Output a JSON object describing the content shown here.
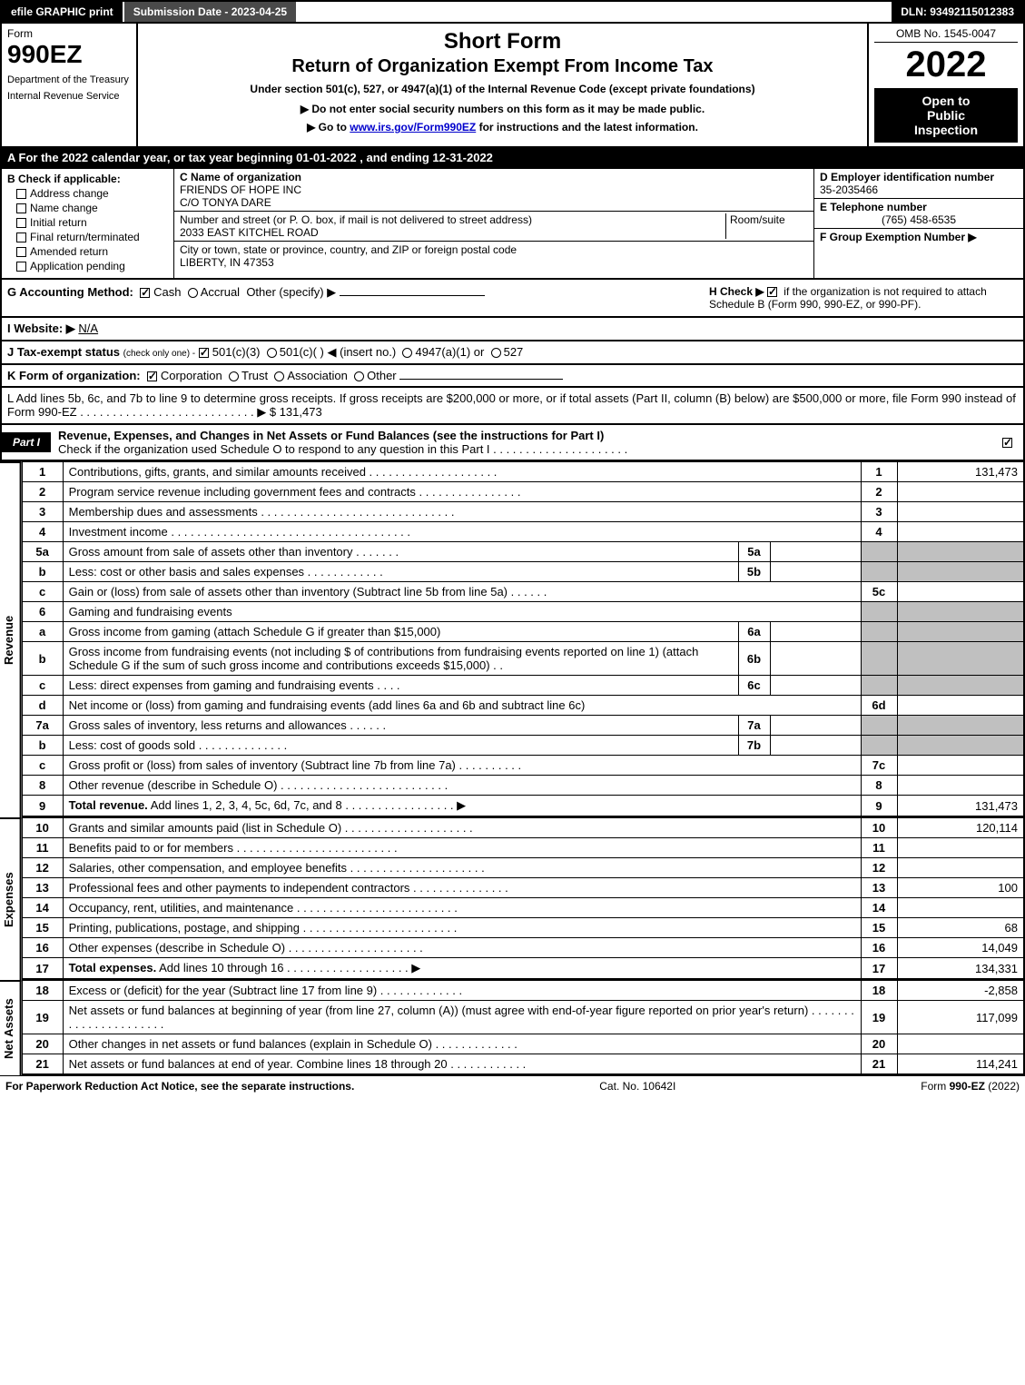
{
  "topbar": {
    "efile": "efile GRAPHIC print",
    "subdate": "Submission Date - 2023-04-25",
    "dln": "DLN: 93492115012383"
  },
  "header": {
    "form_label": "Form",
    "form_number": "990EZ",
    "dept1": "Department of the Treasury",
    "dept2": "Internal Revenue Service",
    "title1": "Short Form",
    "title2": "Return of Organization Exempt From Income Tax",
    "under": "Under section 501(c), 527, or 4947(a)(1) of the Internal Revenue Code (except private foundations)",
    "notice1": "▶ Do not enter social security numbers on this form as it may be made public.",
    "notice2_pre": "▶ Go to ",
    "notice2_link": "www.irs.gov/Form990EZ",
    "notice2_post": " for instructions and the latest information.",
    "omb": "OMB No. 1545-0047",
    "year": "2022",
    "open1": "Open to",
    "open2": "Public",
    "open3": "Inspection"
  },
  "row_a": "A  For the 2022 calendar year, or tax year beginning 01-01-2022 , and ending 12-31-2022",
  "section_b": {
    "lead": "B  Check if applicable:",
    "items": [
      "Address change",
      "Name change",
      "Initial return",
      "Final return/terminated",
      "Amended return",
      "Application pending"
    ]
  },
  "section_c": {
    "c_label": "C Name of organization",
    "name": "FRIENDS OF HOPE INC",
    "care_of": "C/O TONYA DARE",
    "addr_label": "Number and street (or P. O. box, if mail is not delivered to street address)",
    "room_label": "Room/suite",
    "street": "2033 EAST KITCHEL ROAD",
    "city_label": "City or town, state or province, country, and ZIP or foreign postal code",
    "city": "LIBERTY, IN  47353"
  },
  "section_d": {
    "d_label": "D Employer identification number",
    "ein": "35-2035466",
    "e_label": "E Telephone number",
    "phone": "(765) 458-6535",
    "f_label": "F Group Exemption Number  ▶"
  },
  "section_g": {
    "g": "G Accounting Method:",
    "cash": "Cash",
    "accrual": "Accrual",
    "other": "Other (specify) ▶",
    "h": "H  Check ▶",
    "h_rest": "if the organization is not required to attach Schedule B (Form 990, 990-EZ, or 990-PF)."
  },
  "line_i": {
    "label": "I Website: ▶",
    "value": "N/A"
  },
  "line_j": {
    "label": "J Tax-exempt status",
    "note": "(check only one) -",
    "o1": "501(c)(3)",
    "o2": "501(c)( )",
    "o2_insert": "◀ (insert no.)",
    "o3": "4947(a)(1) or",
    "o4": "527"
  },
  "line_k": {
    "label": "K Form of organization:",
    "o1": "Corporation",
    "o2": "Trust",
    "o3": "Association",
    "o4": "Other"
  },
  "line_l": {
    "text": "L Add lines 5b, 6c, and 7b to line 9 to determine gross receipts. If gross receipts are $200,000 or more, or if total assets (Part II, column (B) below) are $500,000 or more, file Form 990 instead of Form 990-EZ",
    "dots": " .  .  .  .  .  .  .  .  .  .  .  .  .  .  .  .  .  .  .  .  .  .  .  .  .  .  .  ▶ $ ",
    "amount": "131,473"
  },
  "part1": {
    "tag": "Part I",
    "title": "Revenue, Expenses, and Changes in Net Assets or Fund Balances (see the instructions for Part I)",
    "sub": "Check if the organization used Schedule O to respond to any question in this Part I .  .  .  .  .  .  .  .  .  .  .  .  .  .  .  .  .  .  .  .  ."
  },
  "vlabels": {
    "rev": "Revenue",
    "exp": "Expenses",
    "na": "Net Assets"
  },
  "rows": [
    {
      "ln": "1",
      "desc": "Contributions, gifts, grants, and similar amounts received .  .  .  .  .  .  .  .  .  .  .  .  .  .  .  .  .  .  .  .",
      "rn": "1",
      "amt": "131,473"
    },
    {
      "ln": "2",
      "desc": "Program service revenue including government fees and contracts .  .  .  .  .  .  .  .  .  .  .  .  .  .  .  .",
      "rn": "2",
      "amt": ""
    },
    {
      "ln": "3",
      "desc": "Membership dues and assessments .  .  .  .  .  .  .  .  .  .  .  .  .  .  .  .  .  .  .  .  .  .  .  .  .  .  .  .  .  .",
      "rn": "3",
      "amt": ""
    },
    {
      "ln": "4",
      "desc": "Investment income .  .  .  .  .  .  .  .  .  .  .  .  .  .  .  .  .  .  .  .  .  .  .  .  .  .  .  .  .  .  .  .  .  .  .  .  .",
      "rn": "4",
      "amt": ""
    },
    {
      "ln": "5a",
      "desc": "Gross amount from sale of assets other than inventory .  .  .  .  .  .  .",
      "sub": "5a",
      "shade": true
    },
    {
      "ln": "b",
      "desc": "Less: cost or other basis and sales expenses .  .  .  .  .  .  .  .  .  .  .  .",
      "sub": "5b",
      "shade": true
    },
    {
      "ln": "c",
      "desc": "Gain or (loss) from sale of assets other than inventory (Subtract line 5b from line 5a) .  .  .  .  .  .",
      "rn": "5c",
      "amt": ""
    },
    {
      "ln": "6",
      "desc": "Gaming and fundraising events",
      "shade": true,
      "noright": true
    },
    {
      "ln": "a",
      "desc": "Gross income from gaming (attach Schedule G if greater than $15,000)",
      "sub": "6a",
      "shade": true
    },
    {
      "ln": "b",
      "desc": "Gross income from fundraising events (not including $                       of contributions from fundraising events reported on line 1) (attach Schedule G if the sum of such gross income and contributions exceeds $15,000)    .   .",
      "sub": "6b",
      "shade": true
    },
    {
      "ln": "c",
      "desc": "Less: direct expenses from gaming and fundraising events    .  .  .  .",
      "sub": "6c",
      "shade": true
    },
    {
      "ln": "d",
      "desc": "Net income or (loss) from gaming and fundraising events (add lines 6a and 6b and subtract line 6c)",
      "rn": "6d",
      "amt": ""
    },
    {
      "ln": "7a",
      "desc": "Gross sales of inventory, less returns and allowances .  .  .  .  .  .",
      "sub": "7a",
      "shade": true
    },
    {
      "ln": "b",
      "desc": "Less: cost of goods sold           .   .   .   .   .   .   .   .   .   .   .   .   .   .",
      "sub": "7b",
      "shade": true
    },
    {
      "ln": "c",
      "desc": "Gross profit or (loss) from sales of inventory (Subtract line 7b from line 7a) .  .  .  .  .  .  .  .  .  .",
      "rn": "7c",
      "amt": ""
    },
    {
      "ln": "8",
      "desc": "Other revenue (describe in Schedule O) .  .  .  .  .  .  .  .  .  .  .  .  .  .  .  .  .  .  .  .  .  .  .  .  .  .",
      "rn": "8",
      "amt": ""
    },
    {
      "ln": "9",
      "desc": "Total revenue. Add lines 1, 2, 3, 4, 5c, 6d, 7c, and 8  .   .   .   .   .   .   .   .   .   .   .   .   .   .   .   .   .   ▶",
      "rn": "9",
      "amt": "131,473",
      "bold": true
    }
  ],
  "exp_rows": [
    {
      "ln": "10",
      "desc": "Grants and similar amounts paid (list in Schedule O) .  .  .  .  .  .  .  .  .  .  .  .  .  .  .  .  .  .  .  .",
      "rn": "10",
      "amt": "120,114"
    },
    {
      "ln": "11",
      "desc": "Benefits paid to or for members    .   .   .   .   .   .   .   .   .   .   .   .   .   .   .   .   .   .   .   .   .   .   .   .   .",
      "rn": "11",
      "amt": ""
    },
    {
      "ln": "12",
      "desc": "Salaries, other compensation, and employee benefits .  .  .  .  .  .  .  .  .  .  .  .  .  .  .  .  .  .  .  .  .",
      "rn": "12",
      "amt": ""
    },
    {
      "ln": "13",
      "desc": "Professional fees and other payments to independent contractors .  .  .  .  .  .  .  .  .  .  .  .  .  .  .",
      "rn": "13",
      "amt": "100"
    },
    {
      "ln": "14",
      "desc": "Occupancy, rent, utilities, and maintenance .  .  .  .  .  .  .  .  .  .  .  .  .  .  .  .  .  .  .  .  .  .  .  .  .",
      "rn": "14",
      "amt": ""
    },
    {
      "ln": "15",
      "desc": "Printing, publications, postage, and shipping .  .  .  .  .  .  .  .  .  .  .  .  .  .  .  .  .  .  .  .  .  .  .  .",
      "rn": "15",
      "amt": "68"
    },
    {
      "ln": "16",
      "desc": "Other expenses (describe in Schedule O)     .   .   .   .   .   .   .   .   .   .   .   .   .   .   .   .   .   .   .   .   .",
      "rn": "16",
      "amt": "14,049"
    },
    {
      "ln": "17",
      "desc": "Total expenses. Add lines 10 through 16     .   .   .   .   .   .   .   .   .   .   .   .   .   .   .   .   .   .   .   ▶",
      "rn": "17",
      "amt": "134,331",
      "bold": true
    }
  ],
  "na_rows": [
    {
      "ln": "18",
      "desc": "Excess or (deficit) for the year (Subtract line 17 from line 9)        .   .   .   .   .   .   .   .   .   .   .   .   .",
      "rn": "18",
      "amt": "-2,858"
    },
    {
      "ln": "19",
      "desc": "Net assets or fund balances at beginning of year (from line 27, column (A)) (must agree with end-of-year figure reported on prior year's return) .  .  .  .  .  .  .  .  .  .  .  .  .  .  .  .  .  .  .  .  .  .",
      "rn": "19",
      "amt": "117,099"
    },
    {
      "ln": "20",
      "desc": "Other changes in net assets or fund balances (explain in Schedule O) .  .  .  .  .  .  .  .  .  .  .  .  .",
      "rn": "20",
      "amt": ""
    },
    {
      "ln": "21",
      "desc": "Net assets or fund balances at end of year. Combine lines 18 through 20 .  .  .  .  .  .  .  .  .  .  .  .",
      "rn": "21",
      "amt": "114,241"
    }
  ],
  "footer": {
    "f1": "For Paperwork Reduction Act Notice, see the separate instructions.",
    "f2": "Cat. No. 10642I",
    "f3": "Form 990-EZ (2022)"
  }
}
